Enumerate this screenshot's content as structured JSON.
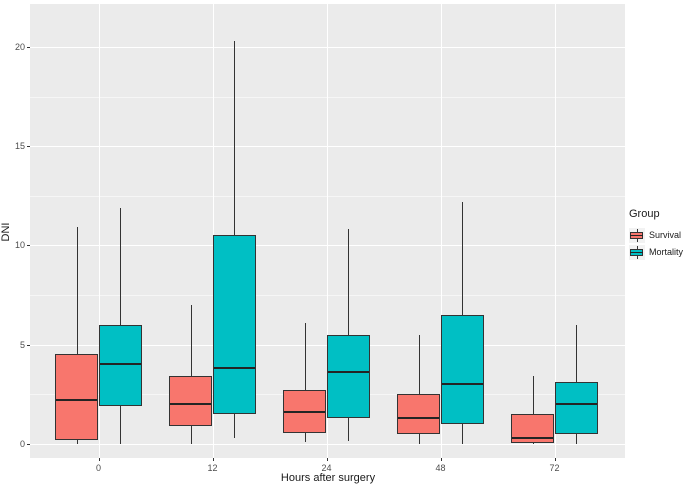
{
  "chart_data": {
    "type": "boxplot",
    "title": "",
    "xlabel": "Hours after surgery",
    "ylabel": "DNI",
    "categories": [
      "0",
      "12",
      "24",
      "48",
      "72"
    ],
    "y_ticks": [
      0,
      5,
      10,
      15,
      20
    ],
    "y_minor_ticks": [
      2.5,
      7.5,
      12.5,
      17.5
    ],
    "ylim": [
      -0.7,
      22.2
    ],
    "grid": true,
    "panel_background": "#EBEBEB",
    "gridline_color": "#FFFFFF",
    "legend": {
      "title": "Group",
      "position": "right"
    },
    "series": [
      {
        "name": "Survival",
        "color": "#F8766D",
        "boxes": [
          {
            "low": 0,
            "q1": 0.2,
            "median": 2.2,
            "q3": 4.5,
            "high": 10.9
          },
          {
            "low": 0,
            "q1": 0.9,
            "median": 2.0,
            "q3": 3.4,
            "high": 7.0
          },
          {
            "low": 0.1,
            "q1": 0.55,
            "median": 1.6,
            "q3": 2.7,
            "high": 6.1
          },
          {
            "low": 0,
            "q1": 0.5,
            "median": 1.3,
            "q3": 2.5,
            "high": 5.5
          },
          {
            "low": 0,
            "q1": 0.05,
            "median": 0.3,
            "q3": 1.5,
            "high": 3.4
          }
        ]
      },
      {
        "name": "Mortality",
        "color": "#00BFC4",
        "boxes": [
          {
            "low": 0,
            "q1": 1.9,
            "median": 4.0,
            "q3": 6.0,
            "high": 11.9
          },
          {
            "low": 0.3,
            "q1": 1.5,
            "median": 3.8,
            "q3": 10.5,
            "high": 20.3
          },
          {
            "low": 0.15,
            "q1": 1.3,
            "median": 3.6,
            "q3": 5.5,
            "high": 10.8
          },
          {
            "low": 0,
            "q1": 1.0,
            "median": 3.0,
            "q3": 6.5,
            "high": 12.2
          },
          {
            "low": 0,
            "q1": 0.5,
            "median": 2.0,
            "q3": 3.1,
            "high": 6.0
          }
        ]
      }
    ]
  }
}
